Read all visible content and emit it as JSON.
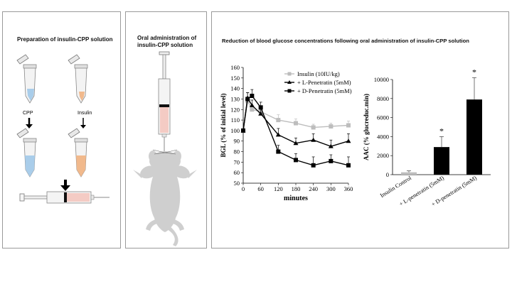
{
  "panel1": {
    "title": "Preparation of insulin-CPP solution",
    "label_cpp": "CPP",
    "label_insulin": "Insulin"
  },
  "panel2": {
    "title_line1": "Oral administration of",
    "title_line2": "insulin-CPP solution"
  },
  "panel3": {
    "title": "Reduction of blood glucose concentrations following oral administration of insulin-CPP solution"
  },
  "colors": {
    "insulin": "#bdbdbd",
    "l_penetratin": "#000000",
    "d_penetratin": "#000000",
    "cpp_fluid": "#a9cdea",
    "insulin_fluid": "#f1b98c",
    "syringe_fill": "#f4cbc4",
    "mouse": "#cfcfcf"
  },
  "chart_data": [
    {
      "type": "line",
      "ylabel": "BGL (% of initial level)",
      "xlabel": "minutes",
      "x_ticks": [
        "0",
        "60",
        "120",
        "180",
        "240",
        "300",
        "360"
      ],
      "y_ticks": [
        "50",
        "60",
        "70",
        "80",
        "90",
        "100",
        "110",
        "120",
        "130",
        "140",
        "150",
        "160"
      ],
      "xlim": [
        0,
        360
      ],
      "ylim": [
        50,
        160
      ],
      "legend_position": "top-right",
      "x": [
        0,
        15,
        30,
        60,
        120,
        180,
        240,
        300,
        360
      ],
      "series": [
        {
          "name": "Insulin (10IU/kg)",
          "marker": "square",
          "values": [
            100,
            128,
            120,
            118,
            110,
            107,
            103,
            104,
            105
          ]
        },
        {
          "name": "+ L-Penetratin (5mM)",
          "marker": "triangle",
          "values": [
            100,
            131,
            124,
            116,
            96,
            88,
            91,
            85,
            90
          ]
        },
        {
          "name": "+ D-Penetratin (5mM)",
          "marker": "square",
          "values": [
            100,
            130,
            133,
            122,
            80,
            72,
            67,
            71,
            67
          ]
        }
      ],
      "errors": [
        [
          0,
          4,
          3,
          4,
          5,
          4,
          3,
          3,
          4
        ],
        [
          0,
          5,
          5,
          6,
          6,
          5,
          6,
          6,
          7
        ],
        [
          0,
          6,
          6,
          5,
          6,
          6,
          8,
          6,
          8
        ]
      ]
    },
    {
      "type": "bar",
      "ylabel": "AAC (% glucreduc.min)",
      "y_ticks": [
        "0",
        "2000",
        "4000",
        "6000",
        "8000",
        "10000"
      ],
      "ylim": [
        0,
        10000
      ],
      "categories": [
        "Insulin Control",
        "+ L-penetratin (5mM)",
        "+ D-penetratin (5mM)"
      ],
      "values": [
        250,
        2900,
        7900
      ],
      "errors": [
        150,
        1100,
        2300
      ],
      "significance": [
        "",
        "*",
        "*"
      ]
    }
  ]
}
